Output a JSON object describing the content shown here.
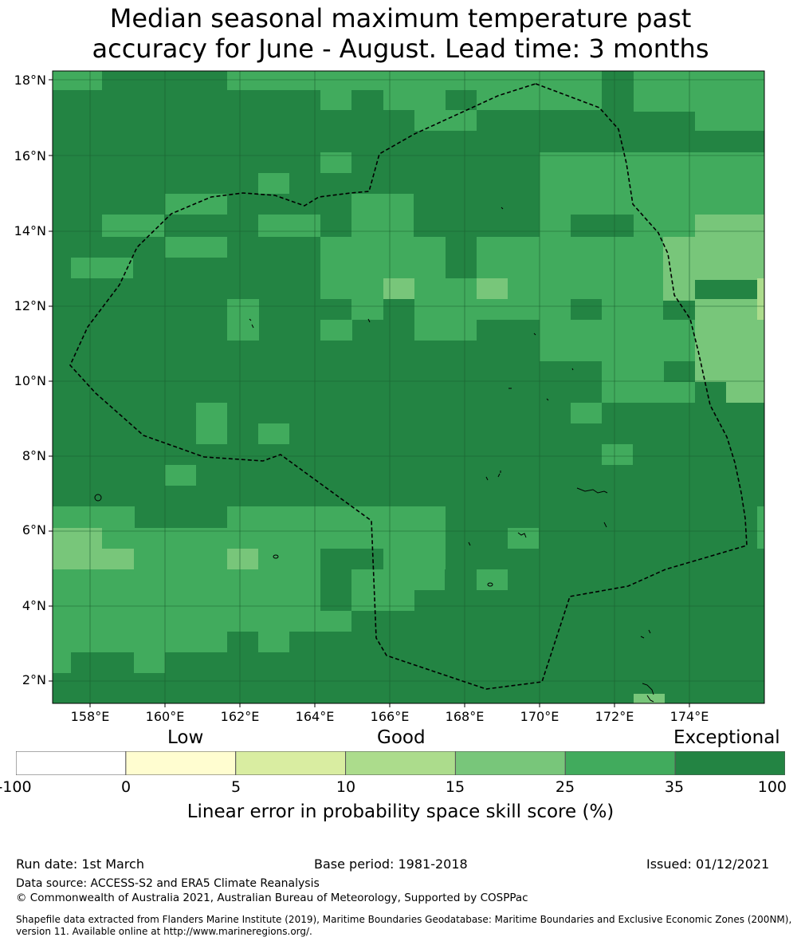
{
  "title": {
    "line1": "Median seasonal maximum temperature past",
    "line2": "accuracy for June - August. Lead time: 3 months"
  },
  "map": {
    "lat_labels": [
      "18°N",
      "16°N",
      "14°N",
      "12°N",
      "10°N",
      "8°N",
      "6°N",
      "4°N",
      "2°N"
    ],
    "lon_labels": [
      "158°E",
      "160°E",
      "162°E",
      "164°E",
      "166°E",
      "168°E",
      "170°E",
      "172°E",
      "174°E"
    ],
    "boundary_style": "dashed black line (maritime boundary / EEZ)",
    "cell_grid_note": "values shown as colour categories: 5=0-5 .. 1=35-100"
  },
  "legend": {
    "categories": [
      "Low",
      "Good",
      "Exceptional"
    ],
    "ticks": [
      "-100",
      "0",
      "5",
      "10",
      "15",
      "25",
      "35",
      "100"
    ],
    "colors": [
      "#ffffff",
      "#fffdd0",
      "#d9eda1",
      "#acdc8c",
      "#78c67a",
      "#41ab5d",
      "#238443"
    ],
    "label": "Linear error in probability space skill score (%)"
  },
  "footer": {
    "run_date": "Run date: 1st March",
    "base_period": "Base period: 1981-2018",
    "issued": "Issued: 01/12/2021",
    "data_source": "Data source: ACCESS-S2 and ERA5 Climate Reanalysis",
    "copyright": "© Commonwealth of Australia 2021, Australian Bureau of Meteorology, Supported by COSPPac",
    "shapefile": "Shapefile data extracted from Flanders Marine Institute (2019), Maritime Boundaries Geodatabase: Maritime Boundaries and Exclusive Economic Zones (200NM), version 11. Available online at http://www.marineregions.org/."
  }
}
